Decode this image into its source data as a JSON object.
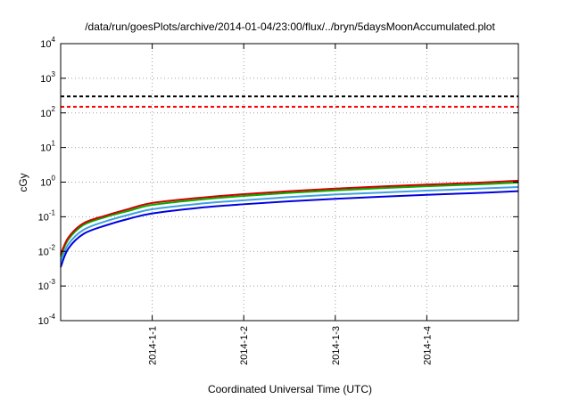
{
  "chart_data": {
    "type": "line",
    "title": "/data/run/goesPlots/archive/2014-01-04/23:00/flux/../bryn/5daysMoonAccumulated.plot",
    "xlabel": "Coordinated Universal Time (UTC)",
    "ylabel": "cGy",
    "x_range": [
      "2013-12-31T00:00",
      "2014-01-05T00:00"
    ],
    "x_ticks": [
      "2014-1-1",
      "2014-1-2",
      "2014-1-3",
      "2014-1-4"
    ],
    "y_scale": "log",
    "y_range": [
      0.0001,
      10000
    ],
    "y_ticks": [
      {
        "base": "10",
        "exp": "-4",
        "value": 0.0001
      },
      {
        "base": "10",
        "exp": "-3",
        "value": 0.001
      },
      {
        "base": "10",
        "exp": "-2",
        "value": 0.01
      },
      {
        "base": "10",
        "exp": "-1",
        "value": 0.1
      },
      {
        "base": "10",
        "exp": "0",
        "value": 1
      },
      {
        "base": "10",
        "exp": "1",
        "value": 10
      },
      {
        "base": "10",
        "exp": "2",
        "value": 100
      },
      {
        "base": "10",
        "exp": "3",
        "value": 1000
      },
      {
        "base": "10",
        "exp": "4",
        "value": 10000
      }
    ],
    "grid": true,
    "x": [
      "2013-12-31T00:00",
      "2013-12-31T02:00",
      "2013-12-31T06:00",
      "2013-12-31T12:00",
      "2013-12-31T18:00",
      "2014-01-01T00:00",
      "2014-01-01T12:00",
      "2014-01-02T00:00",
      "2014-01-02T12:00",
      "2014-01-03T00:00",
      "2014-01-03T12:00",
      "2014-01-04T00:00",
      "2014-01-04T12:00",
      "2014-01-05T00:00"
    ],
    "series": [
      {
        "color": "#d00000",
        "values": [
          0.008,
          0.025,
          0.065,
          0.11,
          0.17,
          0.25,
          0.35,
          0.45,
          0.55,
          0.65,
          0.75,
          0.85,
          0.95,
          1.1
        ]
      },
      {
        "color": "#00b000",
        "values": [
          0.007,
          0.022,
          0.058,
          0.1,
          0.15,
          0.22,
          0.31,
          0.4,
          0.49,
          0.58,
          0.67,
          0.76,
          0.85,
          0.97
        ]
      },
      {
        "color": "#40a0e0",
        "values": [
          0.005,
          0.016,
          0.042,
          0.075,
          0.115,
          0.165,
          0.235,
          0.3,
          0.37,
          0.44,
          0.5,
          0.57,
          0.64,
          0.72
        ]
      },
      {
        "color": "#0000e0",
        "values": [
          0.0035,
          0.012,
          0.032,
          0.057,
          0.088,
          0.125,
          0.18,
          0.23,
          0.28,
          0.33,
          0.38,
          0.43,
          0.48,
          0.55
        ]
      }
    ],
    "reference_lines": [
      {
        "value": 300,
        "color": "#000000",
        "style": "dashed"
      },
      {
        "value": 150,
        "color": "#ff0000",
        "style": "dashed"
      }
    ]
  }
}
